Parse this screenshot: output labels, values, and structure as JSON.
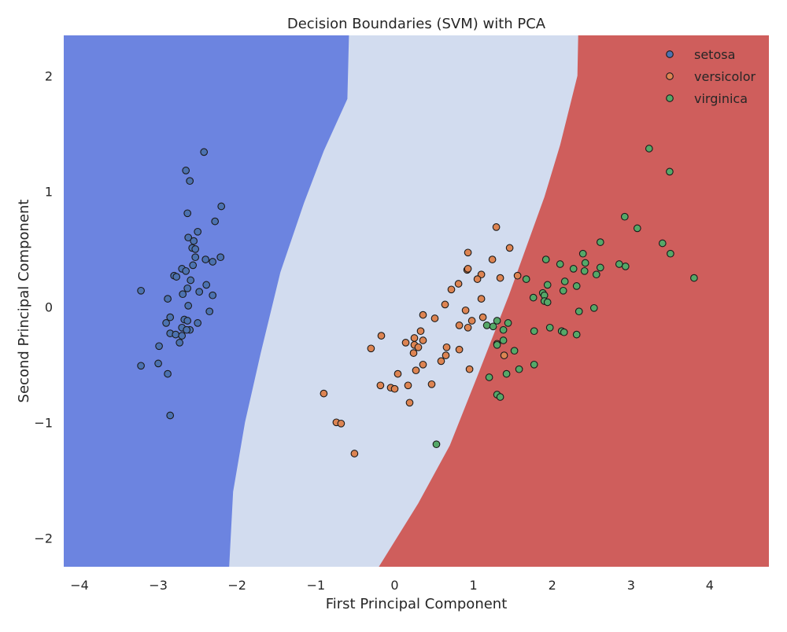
{
  "chart_data": {
    "type": "scatter",
    "title": "Decision Boundaries (SVM) with PCA",
    "xlabel": "First Principal Component",
    "ylabel": "Second Principal Component",
    "xlim": [
      -4.2,
      4.75
    ],
    "ylim": [
      -2.25,
      2.35
    ],
    "x_ticks": [
      -4,
      -3,
      -2,
      -1,
      0,
      1,
      2,
      3,
      4
    ],
    "y_ticks": [
      -2,
      -1,
      0,
      1,
      2
    ],
    "legend_position": "top-right",
    "grid": false,
    "region_colors": {
      "setosa": "#6c84e0",
      "versicolor": "#d2dcef",
      "virginica": "#cf5e5c"
    },
    "boundaries": [
      {
        "name": "setosa-versicolor",
        "points": [
          [
            -2.1,
            -2.25
          ],
          [
            -2.05,
            -1.6
          ],
          [
            -1.9,
            -1.0
          ],
          [
            -1.7,
            -0.4
          ],
          [
            -1.45,
            0.3
          ],
          [
            -1.15,
            0.9
          ],
          [
            -0.9,
            1.35
          ],
          [
            -0.6,
            1.8
          ],
          [
            -0.58,
            2.35
          ]
        ]
      },
      {
        "name": "versicolor-virginica",
        "points": [
          [
            -0.2,
            -2.25
          ],
          [
            0.3,
            -1.7
          ],
          [
            0.7,
            -1.2
          ],
          [
            1.05,
            -0.6
          ],
          [
            1.45,
            0.1
          ],
          [
            1.9,
            0.95
          ],
          [
            2.1,
            1.4
          ],
          [
            2.32,
            2.0
          ],
          [
            2.33,
            2.35
          ]
        ]
      }
    ],
    "series": [
      {
        "name": "setosa",
        "color": "#4c72b0",
        "points": [
          [
            -2.42,
            1.34
          ],
          [
            -2.65,
            1.18
          ],
          [
            -2.6,
            1.09
          ],
          [
            -2.2,
            0.87
          ],
          [
            -2.28,
            0.74
          ],
          [
            -2.63,
            0.81
          ],
          [
            -2.5,
            0.65
          ],
          [
            -2.62,
            0.6
          ],
          [
            -2.55,
            0.57
          ],
          [
            -2.57,
            0.51
          ],
          [
            -2.53,
            0.5
          ],
          [
            -2.53,
            0.43
          ],
          [
            -2.21,
            0.43
          ],
          [
            -2.4,
            0.41
          ],
          [
            -2.31,
            0.39
          ],
          [
            -2.56,
            0.36
          ],
          [
            -2.7,
            0.33
          ],
          [
            -2.65,
            0.31
          ],
          [
            -2.8,
            0.27
          ],
          [
            -2.77,
            0.26
          ],
          [
            -2.59,
            0.23
          ],
          [
            -2.39,
            0.19
          ],
          [
            -2.63,
            0.16
          ],
          [
            -2.48,
            0.13
          ],
          [
            -3.22,
            0.14
          ],
          [
            -2.69,
            0.11
          ],
          [
            -2.31,
            0.1
          ],
          [
            -2.88,
            0.07
          ],
          [
            -2.62,
            0.01
          ],
          [
            -2.35,
            -0.04
          ],
          [
            -2.85,
            -0.09
          ],
          [
            -2.67,
            -0.11
          ],
          [
            -2.63,
            -0.12
          ],
          [
            -2.9,
            -0.14
          ],
          [
            -2.5,
            -0.14
          ],
          [
            -2.7,
            -0.18
          ],
          [
            -2.6,
            -0.2
          ],
          [
            -2.64,
            -0.2
          ],
          [
            -2.85,
            -0.23
          ],
          [
            -2.78,
            -0.24
          ],
          [
            -2.7,
            -0.25
          ],
          [
            -2.73,
            -0.31
          ],
          [
            -2.99,
            -0.34
          ],
          [
            -3.0,
            -0.49
          ],
          [
            -3.22,
            -0.51
          ],
          [
            -2.88,
            -0.58
          ],
          [
            -2.85,
            -0.94
          ]
        ]
      },
      {
        "name": "versicolor",
        "color": "#dd8452",
        "points": [
          [
            1.29,
            0.69
          ],
          [
            1.46,
            0.51
          ],
          [
            0.93,
            0.47
          ],
          [
            1.24,
            0.41
          ],
          [
            0.92,
            0.32
          ],
          [
            0.93,
            0.33
          ],
          [
            1.1,
            0.28
          ],
          [
            1.05,
            0.24
          ],
          [
            1.34,
            0.25
          ],
          [
            1.56,
            0.27
          ],
          [
            0.81,
            0.2
          ],
          [
            0.72,
            0.15
          ],
          [
            1.1,
            0.07
          ],
          [
            0.64,
            0.02
          ],
          [
            0.9,
            -0.03
          ],
          [
            0.36,
            -0.07
          ],
          [
            1.12,
            -0.09
          ],
          [
            0.51,
            -0.1
          ],
          [
            0.98,
            -0.12
          ],
          [
            0.82,
            -0.16
          ],
          [
            0.93,
            -0.18
          ],
          [
            0.33,
            -0.21
          ],
          [
            -0.17,
            -0.25
          ],
          [
            0.25,
            -0.27
          ],
          [
            0.36,
            -0.29
          ],
          [
            0.14,
            -0.31
          ],
          [
            0.25,
            -0.33
          ],
          [
            1.3,
            -0.32
          ],
          [
            0.66,
            -0.35
          ],
          [
            -0.3,
            -0.36
          ],
          [
            0.3,
            -0.35
          ],
          [
            0.82,
            -0.37
          ],
          [
            0.24,
            -0.4
          ],
          [
            0.65,
            -0.42
          ],
          [
            1.39,
            -0.42
          ],
          [
            0.59,
            -0.47
          ],
          [
            0.36,
            -0.5
          ],
          [
            0.95,
            -0.54
          ],
          [
            0.27,
            -0.55
          ],
          [
            0.04,
            -0.58
          ],
          [
            0.47,
            -0.67
          ],
          [
            -0.18,
            -0.68
          ],
          [
            0.17,
            -0.68
          ],
          [
            -0.05,
            -0.7
          ],
          [
            0.0,
            -0.71
          ],
          [
            -0.9,
            -0.75
          ],
          [
            0.19,
            -0.83
          ],
          [
            -0.74,
            -1.0
          ],
          [
            -0.68,
            -1.01
          ],
          [
            -0.51,
            -1.27
          ]
        ]
      },
      {
        "name": "virginica",
        "color": "#55a868",
        "points": [
          [
            3.23,
            1.37
          ],
          [
            3.49,
            1.17
          ],
          [
            2.92,
            0.78
          ],
          [
            3.08,
            0.68
          ],
          [
            2.61,
            0.56
          ],
          [
            3.4,
            0.55
          ],
          [
            2.39,
            0.46
          ],
          [
            3.5,
            0.46
          ],
          [
            1.92,
            0.41
          ],
          [
            2.42,
            0.38
          ],
          [
            2.1,
            0.37
          ],
          [
            2.85,
            0.37
          ],
          [
            2.27,
            0.33
          ],
          [
            2.61,
            0.34
          ],
          [
            2.93,
            0.35
          ],
          [
            2.41,
            0.31
          ],
          [
            2.56,
            0.28
          ],
          [
            3.8,
            0.25
          ],
          [
            1.67,
            0.24
          ],
          [
            2.16,
            0.22
          ],
          [
            1.94,
            0.19
          ],
          [
            2.31,
            0.18
          ],
          [
            2.14,
            0.14
          ],
          [
            1.88,
            0.12
          ],
          [
            1.9,
            0.1
          ],
          [
            1.76,
            0.08
          ],
          [
            1.9,
            0.05
          ],
          [
            1.94,
            0.04
          ],
          [
            2.53,
            -0.01
          ],
          [
            2.34,
            -0.04
          ],
          [
            1.44,
            -0.14
          ],
          [
            1.17,
            -0.16
          ],
          [
            1.3,
            -0.12
          ],
          [
            1.97,
            -0.18
          ],
          [
            1.25,
            -0.17
          ],
          [
            2.12,
            -0.21
          ],
          [
            1.77,
            -0.21
          ],
          [
            2.15,
            -0.22
          ],
          [
            1.38,
            -0.2
          ],
          [
            2.31,
            -0.24
          ],
          [
            1.38,
            -0.29
          ],
          [
            1.3,
            -0.33
          ],
          [
            1.52,
            -0.38
          ],
          [
            1.77,
            -0.5
          ],
          [
            1.58,
            -0.54
          ],
          [
            1.42,
            -0.58
          ],
          [
            1.2,
            -0.61
          ],
          [
            1.3,
            -0.76
          ],
          [
            1.34,
            -0.78
          ],
          [
            0.53,
            -1.19
          ]
        ]
      }
    ]
  }
}
